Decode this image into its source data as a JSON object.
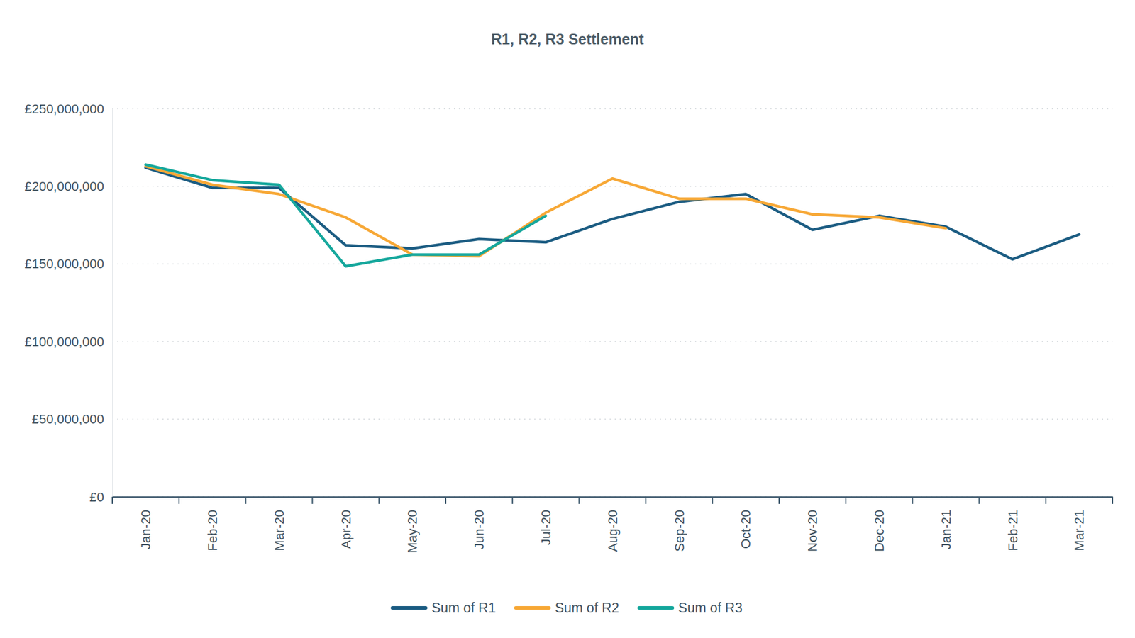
{
  "chart_data": {
    "type": "line",
    "title": "R1, R2, R3 Settlement",
    "categories": [
      "Jan-20",
      "Feb-20",
      "Mar-20",
      "Apr-20",
      "May-20",
      "Jun-20",
      "Jul-20",
      "Aug-20",
      "Sep-20",
      "Oct-20",
      "Nov-20",
      "Dec-20",
      "Jan-21",
      "Feb-21",
      "Mar-21"
    ],
    "series": [
      {
        "name": "Sum of R1",
        "color": "#1b5c82",
        "values": [
          212000000,
          199000000,
          199000000,
          162000000,
          160000000,
          166000000,
          164000000,
          179000000,
          190000000,
          195000000,
          172000000,
          181000000,
          174000000,
          153000000,
          169000000
        ]
      },
      {
        "name": "Sum of R2",
        "color": "#f7a836",
        "values": [
          213000000,
          201000000,
          195000000,
          180000000,
          156000000,
          155000000,
          183000000,
          205000000,
          192000000,
          192000000,
          182000000,
          180000000,
          173000000,
          null,
          null
        ]
      },
      {
        "name": "Sum of R3",
        "color": "#15a79c",
        "values": [
          214000000,
          204000000,
          201000000,
          148500000,
          156000000,
          156000000,
          181000000,
          null,
          null,
          null,
          null,
          null,
          null,
          null,
          null
        ]
      }
    ],
    "ylim": [
      0,
      250000000
    ],
    "yticks": [
      {
        "value": 0,
        "label": "£0"
      },
      {
        "value": 50000000,
        "label": "£50,000,000"
      },
      {
        "value": 100000000,
        "label": "£100,000,000"
      },
      {
        "value": 150000000,
        "label": "£150,000,000"
      },
      {
        "value": 200000000,
        "label": "£200,000,000"
      },
      {
        "value": 250000000,
        "label": "£250,000,000"
      }
    ],
    "grid": true,
    "legend": "bottom"
  }
}
